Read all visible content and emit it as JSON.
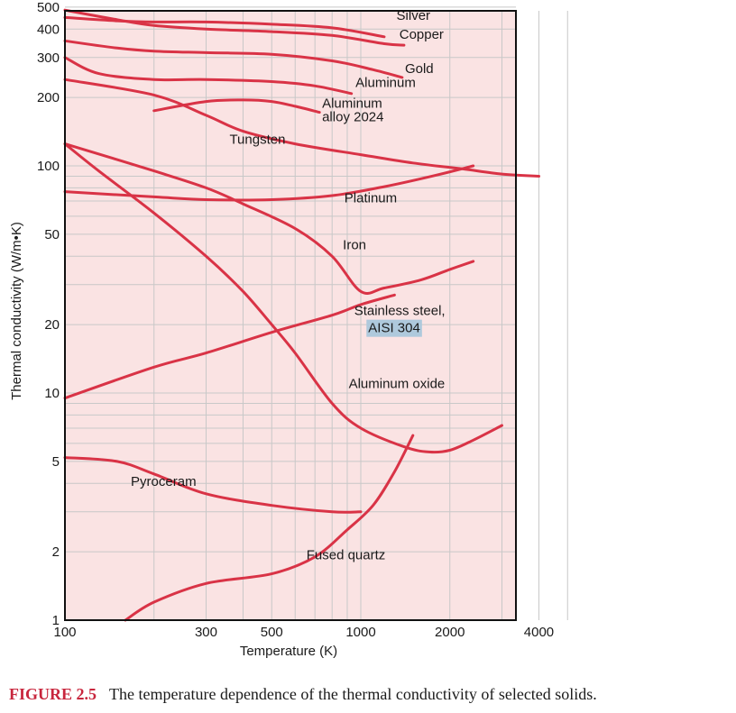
{
  "figure": {
    "label": "FIGURE 2.5",
    "text": "The temperature dependence of the thermal conductivity of selected solids."
  },
  "colors": {
    "plot_background": "#fae3e3",
    "curve": "#d93346",
    "grid": "#c8c8c8",
    "highlight": "#aec9dc"
  },
  "chart_data": {
    "type": "line",
    "title": "",
    "xlabel": "Temperature (K)",
    "ylabel": "Thermal conductivity (W/m•K)",
    "x_scale": "log",
    "y_scale": "log",
    "xlim": [
      100,
      5000
    ],
    "ylim": [
      1,
      500
    ],
    "grid": true,
    "x_ticks": [
      100,
      300,
      500,
      1000,
      2000,
      4000
    ],
    "x_tick_labels": [
      "100",
      "300",
      "500",
      "1000",
      "2000",
      "4000"
    ],
    "y_ticks": [
      1,
      2,
      5,
      10,
      20,
      50,
      100,
      200,
      300,
      400,
      500
    ],
    "y_tick_labels": [
      "1",
      "2",
      "5",
      "10",
      "20",
      "50",
      "100",
      "200",
      "300",
      "400",
      "500"
    ],
    "series": [
      {
        "name": "Silver",
        "label": "Silver",
        "points": [
          [
            100,
            450
          ],
          [
            150,
            435
          ],
          [
            200,
            430
          ],
          [
            300,
            430
          ],
          [
            500,
            420
          ],
          [
            800,
            405
          ],
          [
            1200,
            370
          ]
        ],
        "label_at": [
          1320,
          440
        ]
      },
      {
        "name": "Copper",
        "label": "Copper",
        "points": [
          [
            100,
            485
          ],
          [
            150,
            440
          ],
          [
            200,
            415
          ],
          [
            300,
            400
          ],
          [
            500,
            390
          ],
          [
            800,
            375
          ],
          [
            1200,
            345
          ],
          [
            1400,
            340
          ]
        ],
        "label_at": [
          1350,
          362
        ]
      },
      {
        "name": "Gold",
        "label": "Gold",
        "points": [
          [
            100,
            355
          ],
          [
            150,
            330
          ],
          [
            200,
            320
          ],
          [
            300,
            315
          ],
          [
            500,
            310
          ],
          [
            800,
            290
          ],
          [
            1100,
            265
          ],
          [
            1380,
            245
          ]
        ],
        "label_at": [
          1410,
          256
        ]
      },
      {
        "name": "Aluminum",
        "label": "Aluminum",
        "points": [
          [
            100,
            300
          ],
          [
            130,
            255
          ],
          [
            200,
            240
          ],
          [
            300,
            240
          ],
          [
            500,
            235
          ],
          [
            700,
            225
          ],
          [
            930,
            208
          ]
        ],
        "label_at": [
          960,
          222
        ]
      },
      {
        "name": "Aluminum alloy 2024",
        "label": "Aluminum",
        "label2": "alloy 2024",
        "points": [
          [
            200,
            175
          ],
          [
            300,
            192
          ],
          [
            400,
            195
          ],
          [
            500,
            192
          ],
          [
            600,
            183
          ],
          [
            725,
            172
          ]
        ],
        "label_at": [
          740,
          180
        ],
        "label2_at": [
          740,
          157
        ]
      },
      {
        "name": "Tungsten",
        "label": "Tungsten",
        "points": [
          [
            100,
            240
          ],
          [
            200,
            205
          ],
          [
            300,
            167
          ],
          [
            400,
            142
          ],
          [
            600,
            125
          ],
          [
            1000,
            112
          ],
          [
            1500,
            103
          ],
          [
            2200,
            97
          ],
          [
            3000,
            92
          ],
          [
            4000,
            90
          ]
        ],
        "label_at": [
          360,
          125
        ]
      },
      {
        "name": "Platinum",
        "label": "Platinum",
        "points": [
          [
            100,
            77
          ],
          [
            200,
            73
          ],
          [
            300,
            71
          ],
          [
            500,
            71
          ],
          [
            800,
            74
          ],
          [
            1200,
            81
          ],
          [
            1800,
            91
          ],
          [
            2400,
            100
          ]
        ],
        "label_at": [
          880,
          69
        ]
      },
      {
        "name": "Iron",
        "label": "Iron",
        "points": [
          [
            100,
            125
          ],
          [
            200,
            95
          ],
          [
            300,
            80
          ],
          [
            400,
            68
          ],
          [
            600,
            53
          ],
          [
            800,
            40
          ],
          [
            1000,
            28
          ],
          [
            1200,
            29
          ],
          [
            1600,
            31.5
          ],
          [
            2000,
            35
          ],
          [
            2400,
            38
          ]
        ],
        "label_at": [
          870,
          43
        ]
      },
      {
        "name": "Stainless steel, AISI 304",
        "label": "Stainless steel,",
        "label2": "AISI 304",
        "points": [
          [
            100,
            9.5
          ],
          [
            200,
            13
          ],
          [
            300,
            15
          ],
          [
            500,
            18.5
          ],
          [
            800,
            22
          ],
          [
            1000,
            24.5
          ],
          [
            1300,
            27
          ]
        ],
        "label_at": [
          950,
          22
        ],
        "label2_at": [
          1060,
          18.5
        ]
      },
      {
        "name": "Aluminum oxide",
        "label": "Aluminum oxide",
        "points": [
          [
            100,
            125
          ],
          [
            130,
            95
          ],
          [
            200,
            62
          ],
          [
            300,
            40
          ],
          [
            400,
            28
          ],
          [
            500,
            20
          ],
          [
            600,
            15
          ],
          [
            800,
            9
          ],
          [
            1000,
            7
          ],
          [
            1400,
            5.8
          ],
          [
            1700,
            5.5
          ],
          [
            2000,
            5.6
          ],
          [
            2400,
            6.2
          ],
          [
            3000,
            7.2
          ]
        ],
        "label_at": [
          910,
          10.5
        ]
      },
      {
        "name": "Pyroceram",
        "label": "Pyroceram",
        "points": [
          [
            100,
            5.2
          ],
          [
            150,
            5
          ],
          [
            200,
            4.4
          ],
          [
            300,
            3.6
          ],
          [
            500,
            3.2
          ],
          [
            800,
            3
          ],
          [
            1000,
            3
          ]
        ],
        "label_at": [
          167,
          3.9
        ]
      },
      {
        "name": "Fused quartz",
        "label": "Fused quartz",
        "points": [
          [
            160,
            1
          ],
          [
            200,
            1.2
          ],
          [
            300,
            1.45
          ],
          [
            500,
            1.6
          ],
          [
            700,
            1.9
          ],
          [
            900,
            2.5
          ],
          [
            1100,
            3.2
          ],
          [
            1300,
            4.5
          ],
          [
            1500,
            6.5
          ]
        ],
        "label_at": [
          655,
          1.85
        ]
      }
    ]
  }
}
